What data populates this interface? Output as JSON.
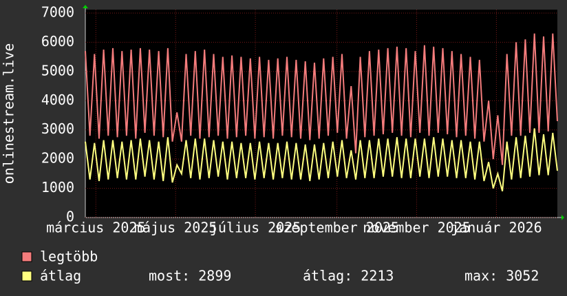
{
  "chart_data": {
    "type": "line",
    "y_label": "onlinestream.live",
    "xlim": [
      0,
      103
    ],
    "xticks": [
      {
        "value": 2.3,
        "label": "március 2025"
      },
      {
        "value": 19.7,
        "label": "május 2025"
      },
      {
        "value": 37.1,
        "label": "július 2025"
      },
      {
        "value": 54.9,
        "label": "szeptember 2025"
      },
      {
        "value": 72.3,
        "label": "november 2025"
      },
      {
        "value": 89.7,
        "label": "január 2026"
      }
    ],
    "ylim": [
      0,
      7000
    ],
    "yticks": [
      0,
      1000,
      2000,
      3000,
      4000,
      5000,
      6000,
      7000
    ],
    "grid": true,
    "series": [
      {
        "name": "legtöbb",
        "color": "#f47c7c",
        "values": [
          5700,
          2800,
          5600,
          2700,
          5750,
          2800,
          5800,
          2750,
          5700,
          2800,
          5750,
          2700,
          5800,
          2900,
          5750,
          2800,
          5700,
          2750,
          5800,
          2600,
          3600,
          2600,
          5600,
          2800,
          5700,
          2700,
          5750,
          2750,
          5600,
          2800,
          5500,
          2700,
          5550,
          2750,
          5500,
          2800,
          5450,
          2700,
          5500,
          2750,
          5400,
          2700,
          5450,
          2800,
          5500,
          2750,
          5400,
          2700,
          5350,
          2650,
          5300,
          2700,
          5450,
          2800,
          5500,
          2900,
          5600,
          2700,
          4500,
          2200,
          5500,
          2750,
          5700,
          2800,
          5750,
          2850,
          5800,
          2900,
          5850,
          2800,
          5800,
          2750,
          5700,
          2900,
          5900,
          2800,
          5850,
          2900,
          5800,
          2850,
          5700,
          2750,
          5600,
          2800,
          5500,
          2700,
          5400,
          2600,
          4000,
          2000,
          3500,
          1800,
          5600,
          2800,
          6000,
          2800,
          6100,
          2900,
          6300,
          2900,
          6200,
          2950,
          6300,
          3300
        ]
      },
      {
        "name": "átlag",
        "color": "#ffff80",
        "values": [
          2600,
          1300,
          2550,
          1250,
          2650,
          1300,
          2650,
          1350,
          2600,
          1300,
          2650,
          1300,
          2700,
          1400,
          2650,
          1300,
          2600,
          1250,
          2750,
          1200,
          1800,
          1500,
          2650,
          1350,
          2700,
          1300,
          2700,
          1350,
          2650,
          1400,
          2600,
          1300,
          2600,
          1350,
          2550,
          1350,
          2550,
          1300,
          2600,
          1350,
          2550,
          1300,
          2550,
          1350,
          2600,
          1300,
          2550,
          1300,
          2500,
          1250,
          2500,
          1300,
          2550,
          1350,
          2600,
          1400,
          2650,
          1350,
          2300,
          1300,
          2650,
          1350,
          2650,
          1350,
          2700,
          1400,
          2700,
          1400,
          2750,
          1350,
          2700,
          1350,
          2700,
          1400,
          2700,
          1350,
          2750,
          1400,
          2700,
          1400,
          2650,
          1350,
          2650,
          1350,
          2600,
          1300,
          2600,
          1250,
          1900,
          1000,
          1500,
          900,
          2600,
          1300,
          2750,
          1350,
          2800,
          1400,
          3052,
          1450,
          2850,
          1450,
          2900,
          1600
        ]
      }
    ],
    "stats": [
      "most: 2899",
      "átlag: 2213",
      "max: 3052"
    ]
  }
}
